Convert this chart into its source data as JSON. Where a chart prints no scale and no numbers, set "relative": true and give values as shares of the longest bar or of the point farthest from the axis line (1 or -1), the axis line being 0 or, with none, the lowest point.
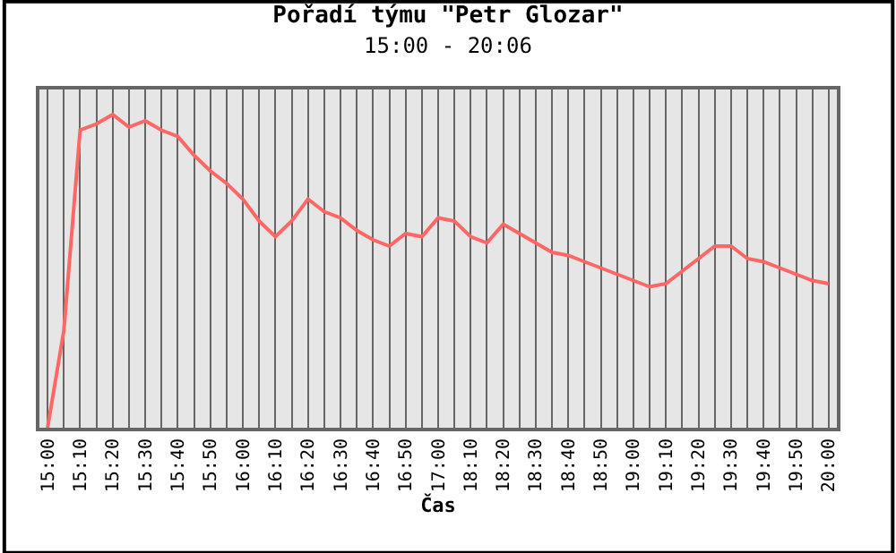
{
  "chart_data": {
    "type": "line",
    "title": "Pořadí týmu \"Petr Glozar\"",
    "subtitle": "15:00 - 20:06",
    "xlabel": "Čas",
    "categories": [
      "15:00",
      null,
      "15:10",
      null,
      "15:20",
      null,
      "15:30",
      null,
      "15:40",
      null,
      "15:50",
      null,
      "16:00",
      null,
      "16:10",
      null,
      "16:20",
      null,
      "16:30",
      null,
      "16:40",
      null,
      "16:50",
      null,
      "17:00",
      null,
      "18:10",
      null,
      "18:20",
      null,
      "18:30",
      null,
      "18:40",
      null,
      "18:50",
      null,
      "19:00",
      null,
      "19:10",
      null,
      "19:20",
      null,
      "19:30",
      null,
      "19:40",
      null,
      "19:50",
      null,
      "20:00"
    ],
    "series": [
      {
        "color": "#ff6666",
        "values": [
          0,
          0.31,
          0.95,
          0.97,
          1,
          0.96,
          0.98,
          0.95,
          0.93,
          0.87,
          0.82,
          0.78,
          0.73,
          0.66,
          0.61,
          0.66,
          0.73,
          0.69,
          0.67,
          0.63,
          0.6,
          0.58,
          0.62,
          0.61,
          0.67,
          0.66,
          0.61,
          0.59,
          0.65,
          0.62,
          0.59,
          0.56,
          0.55,
          0.53,
          0.51,
          0.49,
          0.47,
          0.45,
          0.46,
          0.5,
          0.54,
          0.58,
          0.58,
          0.54,
          0.53,
          0.51,
          0.49,
          0.47,
          0.46
        ]
      }
    ],
    "relative": true,
    "grid": "x",
    "marker": "none",
    "line_style": "solid"
  }
}
